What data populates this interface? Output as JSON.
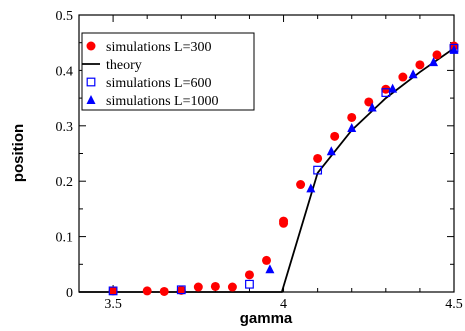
{
  "chart_data": {
    "type": "scatter",
    "xlabel": "gamma",
    "ylabel": "position",
    "xlim": [
      3.4,
      4.5
    ],
    "ylim": [
      0,
      0.5
    ],
    "x_ticks": [
      "3.5",
      "4",
      "4.5"
    ],
    "y_ticks": [
      "0",
      "0.1",
      "0.2",
      "0.3",
      "0.4",
      "0.5"
    ],
    "grid": false,
    "legend_position": "top-left",
    "series": [
      {
        "name": "simulations L=300",
        "marker": "filled-circle",
        "color": "#ff0000",
        "points": [
          [
            3.5,
            0.002
          ],
          [
            3.6,
            0.002
          ],
          [
            3.65,
            0.001
          ],
          [
            3.7,
            0.003
          ],
          [
            3.75,
            0.009
          ],
          [
            3.8,
            0.01
          ],
          [
            3.85,
            0.009
          ],
          [
            3.9,
            0.031
          ],
          [
            3.95,
            0.057
          ],
          [
            4.0,
            0.128
          ],
          [
            4.0,
            0.124
          ],
          [
            4.05,
            0.194
          ],
          [
            4.1,
            0.241
          ],
          [
            4.15,
            0.281
          ],
          [
            4.2,
            0.315
          ],
          [
            4.25,
            0.343
          ],
          [
            4.3,
            0.366
          ],
          [
            4.35,
            0.388
          ],
          [
            4.4,
            0.41
          ],
          [
            4.45,
            0.428
          ],
          [
            4.5,
            0.444
          ]
        ]
      },
      {
        "name": "theory",
        "marker": "line",
        "color": "#000000",
        "points": [
          [
            3.4,
            0.0
          ],
          [
            3.995,
            0.0
          ],
          [
            4.1,
            0.215
          ],
          [
            4.2,
            0.292
          ],
          [
            4.3,
            0.35
          ],
          [
            4.4,
            0.397
          ],
          [
            4.5,
            0.44
          ]
        ]
      },
      {
        "name": "simulations L=600",
        "marker": "open-square",
        "color": "#0000ff",
        "points": [
          [
            3.5,
            0.002
          ],
          [
            3.7,
            0.004
          ],
          [
            3.9,
            0.014
          ],
          [
            4.1,
            0.22
          ],
          [
            4.3,
            0.36
          ],
          [
            4.5,
            0.44
          ]
        ]
      },
      {
        "name": "simulations L=1000",
        "marker": "filled-triangle",
        "color": "#0000ff",
        "points": [
          [
            3.96,
            0.041
          ],
          [
            4.08,
            0.187
          ],
          [
            4.14,
            0.254
          ],
          [
            4.2,
            0.296
          ],
          [
            4.26,
            0.333
          ],
          [
            4.32,
            0.367
          ],
          [
            4.38,
            0.393
          ],
          [
            4.44,
            0.415
          ],
          [
            4.5,
            0.437
          ]
        ]
      }
    ]
  }
}
